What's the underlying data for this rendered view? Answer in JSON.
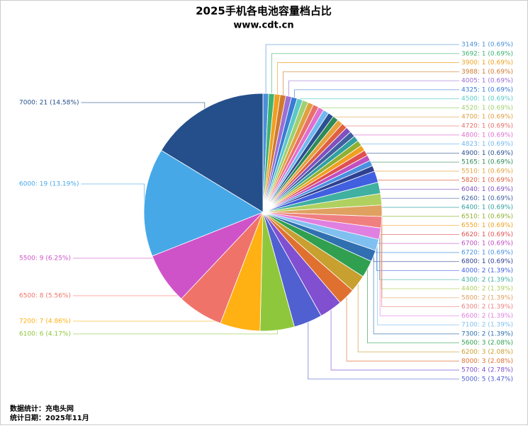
{
  "chart_data": {
    "type": "pie",
    "title": "2025手机各电池容量档占比",
    "subtitle": "www.cdt.cn",
    "values": [
      1,
      1,
      1,
      1,
      1,
      1,
      1,
      1,
      1,
      1,
      1,
      1,
      1,
      1,
      1,
      1,
      1,
      1,
      1,
      1,
      1,
      1,
      1,
      1,
      1,
      2,
      2,
      2,
      2,
      2,
      2,
      2,
      2,
      3,
      3,
      3,
      4,
      5,
      6,
      7,
      8,
      9,
      19,
      21
    ],
    "value_labels": [
      "3149: 1 (0.69%)",
      "3692: 1 (0.69%)",
      "3900: 1 (0.69%)",
      "3988: 1 (0.69%)",
      "4005: 1 (0.69%)",
      "4325: 1 (0.69%)",
      "4500: 1 (0.69%)",
      "4520: 1 (0.69%)",
      "4700: 1 (0.69%)",
      "4720: 1 (0.69%)",
      "4800: 1 (0.69%)",
      "4823: 1 (0.69%)",
      "4900: 1 (0.69%)",
      "5165: 1 (0.69%)",
      "5510: 1 (0.69%)",
      "5820: 1 (0.69%)",
      "6040: 1 (0.69%)",
      "6260: 1 (0.69%)",
      "6400: 1 (0.69%)",
      "6510: 1 (0.69%)",
      "6550: 1 (0.69%)",
      "6620: 1 (0.69%)",
      "6700: 1 (0.69%)",
      "6720: 1 (0.69%)",
      "6800: 1 (0.69%)",
      "4000: 2 (1.39%)",
      "4300: 2 (1.39%)",
      "4400: 2 (1.39%)",
      "5800: 2 (1.39%)",
      "6300: 2 (1.39%)",
      "6600: 2 (1.39%)",
      "7100: 2 (1.39%)",
      "7300: 2 (1.39%)",
      "5600: 3 (2.08%)",
      "6200: 3 (2.08%)",
      "8000: 3 (2.08%)",
      "5700: 4 (2.78%)",
      "5000: 5 (3.47%)",
      "6100: 6 (4.17%)",
      "7200: 7 (4.86%)",
      "6500: 8 (5.56%)",
      "5500: 9 (6.25%)",
      "6000: 19 (13.19%)",
      "7000: 21 (14.58%)"
    ],
    "colors": [
      "#4a90d9",
      "#3cb371",
      "#f0a020",
      "#d07a30",
      "#9b6fd6",
      "#3a7bd5",
      "#5bc8c8",
      "#a0d070",
      "#e0a040",
      "#e8706a",
      "#e070d0",
      "#70b8f0",
      "#2a5090",
      "#2e8b57",
      "#e6a23c",
      "#e06040",
      "#8050c0",
      "#4060a0",
      "#30a0a0",
      "#90b030",
      "#f0a020",
      "#e05050",
      "#c050c0",
      "#4a90e0",
      "#304090",
      "#4060e0",
      "#40b0a0",
      "#b0d060",
      "#e0a060",
      "#f08080",
      "#e080e0",
      "#80c0f0",
      "#3070b0",
      "#30a050",
      "#c8a030",
      "#e07030",
      "#8050d0",
      "#5060d0",
      "#8fc73c",
      "#ffb114",
      "#f0736a",
      "#cf53c8",
      "#47a8e8",
      "#244f8a"
    ]
  },
  "footer": {
    "source": "数据统计：充电头网",
    "date": "统计日期：2025年11月"
  }
}
